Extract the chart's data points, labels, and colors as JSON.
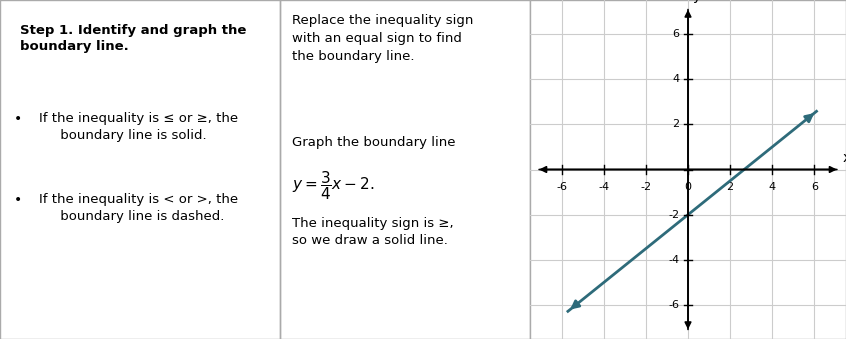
{
  "col1_bg": "#8FA8BC",
  "col2_bg": "#FFFFFF",
  "col3_bg": "#FFFFFF",
  "border_color": "#AAAAAA",
  "text_color": "#000000",
  "col1_title": "Step 1. Identify and graph the\nboundary line.",
  "col2_line1": "Replace the inequality sign\nwith an equal sign to find\nthe boundary line.",
  "col2_line2": "Graph the boundary line",
  "col2_formula": "$y = \\dfrac{3}{4}x - 2.$",
  "col2_line3": "The inequality sign is ≥,\nso we draw a solid line.",
  "line_color": "#2E6B7A",
  "axis_color": "#000000",
  "grid_color": "#CCCCCC",
  "slope": 0.75,
  "intercept": -2,
  "x_ticks": [
    -6,
    -4,
    -2,
    0,
    2,
    4,
    6
  ],
  "y_ticks": [
    -6,
    -4,
    -2,
    0,
    2,
    4,
    6
  ],
  "tick_labels_x": [
    "-6",
    "-4",
    "-2",
    "0",
    "2",
    "4",
    "6"
  ],
  "tick_labels_y": [
    "-6",
    "-4",
    "-2",
    "",
    "2",
    "4",
    "6"
  ]
}
